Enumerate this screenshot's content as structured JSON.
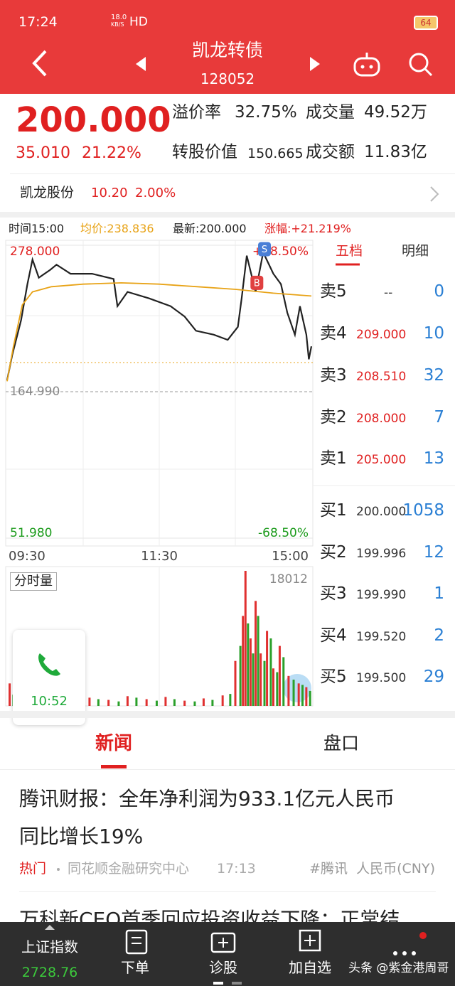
{
  "status": {
    "time": "17:24",
    "net": "18.0",
    "net_unit": "KB/S",
    "hd": "HD",
    "battery": "64"
  },
  "header": {
    "title": "凯龙转债",
    "code": "128052"
  },
  "quote": {
    "price": "200.000",
    "change": "35.010",
    "change_pct": "21.22%",
    "stats": [
      {
        "label": "溢价率",
        "value": "32.75%"
      },
      {
        "label": "成交量",
        "value": "49.52万"
      },
      {
        "label": "转股价值",
        "value": "150.665"
      },
      {
        "label": "成交额",
        "value": "11.83亿"
      }
    ]
  },
  "stock": {
    "name": "凯龙股份",
    "price": "10.20",
    "pct": "2.00%"
  },
  "info": {
    "time": "时间15:00",
    "avg": "均价:238.836",
    "latest": "最新:200.000",
    "change": "涨幅:+21.219%"
  },
  "chart_data": [
    {
      "type": "line",
      "xlim": [
        0,
        240
      ],
      "xticks": [
        {
          "value": 0,
          "label": "09:30"
        },
        {
          "value": 120,
          "label": "11:30"
        },
        {
          "value": 240,
          "label": "15:00"
        }
      ],
      "ylim": [
        51.98,
        278
      ],
      "yticks": [
        {
          "value": 278,
          "label": "278.000"
        },
        {
          "value": 164.99,
          "label": "164.990"
        },
        {
          "value": 51.98,
          "label": "51.980"
        }
      ],
      "ytick_colors": [
        "#e02020",
        "#888888",
        "#1a9a1a"
      ],
      "y2lim": [
        -68.5,
        68.5
      ],
      "y2ticks": [
        {
          "value": 68.5,
          "label": "+68.50%"
        },
        {
          "value": -68.5,
          "label": "-68.50%"
        }
      ],
      "y2tick_colors": [
        "#e02020",
        "#1a9a1a"
      ],
      "series": [
        {
          "color": "#222222",
          "x": [
            0,
            4,
            11,
            16,
            20,
            25,
            34,
            39,
            50,
            67,
            84,
            87,
            95,
            112,
            129,
            140,
            149,
            163,
            174,
            182,
            185,
            189,
            196,
            202,
            210,
            216,
            221,
            227,
            231,
            236,
            238,
            240
          ],
          "values": [
            173.8,
            193,
            220,
            247.8,
            267,
            253,
            259,
            263,
            256,
            256,
            252,
            231,
            242,
            237,
            231,
            223,
            212,
            209,
            205,
            215,
            237,
            270,
            242,
            272.5,
            256,
            248,
            226,
            209,
            231,
            209,
            190,
            200
          ]
        },
        {
          "color": "#e8a317",
          "x": [
            0,
            5,
            12,
            20,
            35,
            60,
            90,
            120,
            150,
            180,
            210,
            240
          ],
          "values": [
            173,
            200,
            232,
            242,
            246,
            248,
            249,
            248,
            246,
            244,
            241,
            238.836
          ]
        }
      ],
      "annotations": [
        {
          "text": "S",
          "x": 203,
          "y": 275,
          "color": "#4a7fd6"
        },
        {
          "text": "B",
          "x": 197,
          "y": 249,
          "color": "#e04040"
        }
      ]
    },
    {
      "type": "bar",
      "title": "分时量",
      "xlim": [
        0,
        240
      ],
      "ylim": [
        0,
        18012
      ],
      "yticks": [
        18012
      ],
      "series": [
        {
          "color": "#e03030",
          "x": [
            2,
            10,
            20,
            35,
            50,
            65,
            80,
            95,
            110,
            125,
            140,
            155,
            170,
            180,
            186,
            188,
            192,
            196,
            200,
            205,
            210,
            215,
            222,
            230,
            236
          ],
          "values": [
            3000,
            1200,
            900,
            1500,
            1000,
            1100,
            800,
            1300,
            900,
            1200,
            700,
            1000,
            1400,
            6000,
            12000,
            18012,
            9000,
            14000,
            7000,
            10000,
            5000,
            8000,
            4000,
            3000,
            2500
          ]
        },
        {
          "color": "#2aa02a",
          "x": [
            5,
            15,
            28,
            42,
            58,
            72,
            88,
            102,
            118,
            132,
            148,
            162,
            176,
            184,
            190,
            194,
            198,
            203,
            208,
            213,
            218,
            226,
            233,
            239
          ],
          "values": [
            1500,
            1000,
            700,
            1200,
            800,
            900,
            600,
            1100,
            700,
            900,
            600,
            800,
            1600,
            8000,
            11000,
            7000,
            12000,
            6000,
            9000,
            4500,
            6500,
            3500,
            2800,
            2000
          ]
        }
      ]
    }
  ],
  "order_book": {
    "tabs": [
      "五档",
      "明细"
    ],
    "rows": [
      {
        "label": "卖5",
        "price": "--",
        "volume": "0"
      },
      {
        "label": "卖4",
        "price": "209.000",
        "volume": "10"
      },
      {
        "label": "卖3",
        "price": "208.510",
        "volume": "32"
      },
      {
        "label": "卖2",
        "price": "208.000",
        "volume": "7"
      },
      {
        "label": "卖1",
        "price": "205.000",
        "volume": "13"
      },
      {
        "label": "买1",
        "price": "200.000",
        "volume": "1058"
      },
      {
        "label": "买2",
        "price": "199.996",
        "volume": "12"
      },
      {
        "label": "买3",
        "price": "199.990",
        "volume": "1"
      },
      {
        "label": "买4",
        "price": "199.520",
        "volume": "2"
      },
      {
        "label": "买5",
        "price": "199.500",
        "volume": "29"
      }
    ]
  },
  "news": {
    "tabs": [
      "新闻",
      "盘口"
    ],
    "title_lines": [
      "腾讯财报：全年净利润为933.1亿元人民币",
      "同比增长19%"
    ],
    "tag": "热门",
    "source": "同花顺金融研究中心",
    "time": "17:13",
    "topics": "#腾讯  人民币(CNY)",
    "next": "万科新CEO首季回应投资收益下降：正常结"
  },
  "call": {
    "time": "10:52"
  },
  "nav": [
    {
      "label": "上证指数",
      "value": "2728.76"
    },
    {
      "label": "下单"
    },
    {
      "label": "诊股"
    },
    {
      "label": "加自选"
    }
  ],
  "watermark": "头条 @紫金港周哥"
}
